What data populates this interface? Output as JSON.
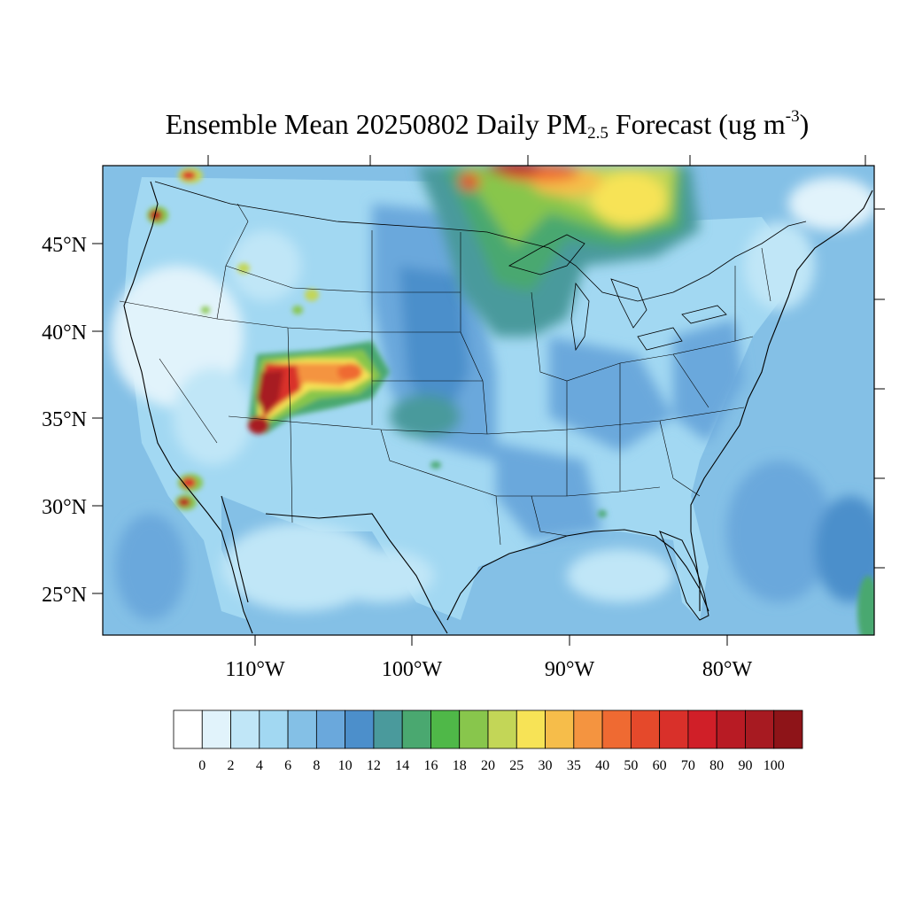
{
  "title": {
    "prefix": "Ensemble Mean 20250802 Daily PM",
    "subscript": "2.5",
    "middle": " Forecast (ug m",
    "superscript": "-3",
    "suffix": ")"
  },
  "lat_labels": [
    "45°N",
    "40°N",
    "35°N",
    "30°N",
    "25°N"
  ],
  "lon_labels": [
    "110°W",
    "100°W",
    "90°W",
    "80°W"
  ],
  "colorbar": {
    "labels": [
      "0",
      "2",
      "4",
      "6",
      "8",
      "10",
      "12",
      "14",
      "16",
      "18",
      "20",
      "25",
      "30",
      "35",
      "40",
      "50",
      "60",
      "70",
      "80",
      "90",
      "100"
    ],
    "colors": [
      "#ffffff",
      "#e1f3fb",
      "#c0e6f7",
      "#a2d8f2",
      "#84c0e6",
      "#6aa8dc",
      "#4c8fcb",
      "#4a9a9c",
      "#4aa870",
      "#4fb848",
      "#88c64c",
      "#c3d657",
      "#f7e356",
      "#f6bd4a",
      "#f49440",
      "#ef6a32",
      "#e5492b",
      "#d9302a",
      "#d01f28",
      "#b81b24",
      "#a71a21",
      "#8e1418"
    ]
  },
  "colors": {
    "ocean": "#7fb6e2",
    "land_base": "#a2d8f2",
    "boundary": "#000000"
  }
}
